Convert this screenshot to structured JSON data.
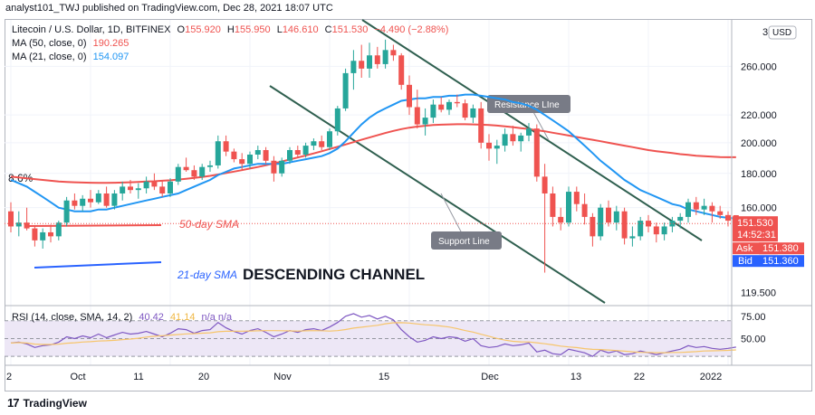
{
  "header": {
    "publish_line": "analyst101_TWJ published on TradingView.com, Dec 28, 2021 18:07 UTC"
  },
  "legend": {
    "symbol": "Litecoin / U.S. Dollar, 1D, BITFINEX",
    "o_label": "O",
    "o": "155.920",
    "h_label": "H",
    "h": "155.950",
    "l_label": "L",
    "l": "146.610",
    "c_label": "C",
    "c": "151.530",
    "change": "−4.490 (−2.88%)",
    "ma50": "MA (50, close, 0)",
    "ma50_val": "190.265",
    "ma21": "MA (21, close, 0)",
    "ma21_val": "154.097",
    "rsi": "RSI (14, close, SMA, 14, 2)",
    "rsi_val1": "40.42",
    "rsi_val2": "41.14",
    "rsi_na": "n/a  n/a"
  },
  "annotations": {
    "pct_label": "8.6%",
    "sma50": "50-day SMA",
    "sma21": "21-day SMA",
    "channel": "DESCENDING CHANNEL",
    "resistance": "Resistance LIne",
    "support": "Support Line"
  },
  "price_axis": {
    "currency": "USD",
    "currency_prefix": "3",
    "ticks": [
      "260.000",
      "220.000",
      "200.000",
      "180.000",
      "160.000",
      "119.500"
    ],
    "last_price": "151.530",
    "countdown": "14:52:31",
    "ask_label": "Ask",
    "ask": "151.380",
    "bid_label": "Bid",
    "bid": "151.360"
  },
  "rsi_axis": {
    "ticks": [
      "75.00",
      "50.00"
    ]
  },
  "time_axis": {
    "ticks": [
      "2",
      "Oct",
      "11",
      "20",
      "Nov",
      "15",
      "Dec",
      "13",
      "22",
      "2022"
    ]
  },
  "footer": {
    "brand": "TradingView",
    "logo": "17"
  },
  "colors": {
    "up": "#26a69a",
    "down": "#ef5350",
    "ma50": "#ef5350",
    "ma21": "#2196f3",
    "channel_line": "#2f5f4f",
    "rsi": "#7e57c2",
    "rsi_sma": "#f7c56a",
    "rsi_band": "#ede7f6"
  },
  "chart_data": {
    "type": "candlestick",
    "symbol": "LTCUSD",
    "timeframe": "1D",
    "scale": "log",
    "ylim": [
      115,
      305
    ],
    "dates": [
      "Sep 28",
      "Sep 29",
      "Sep 30",
      "Oct 1",
      "Oct 2",
      "Oct 3",
      "Oct 4",
      "Oct 5",
      "Oct 6",
      "Oct 7",
      "Oct 8",
      "Oct 9",
      "Oct 10",
      "Oct 11",
      "Oct 12",
      "Oct 13",
      "Oct 14",
      "Oct 15",
      "Oct 16",
      "Oct 17",
      "Oct 18",
      "Oct 19",
      "Oct 20",
      "Oct 21",
      "Oct 22",
      "Oct 23",
      "Oct 24",
      "Oct 25",
      "Oct 26",
      "Oct 27",
      "Oct 28",
      "Oct 29",
      "Oct 30",
      "Oct 31",
      "Nov 1",
      "Nov 2",
      "Nov 3",
      "Nov 4",
      "Nov 5",
      "Nov 6",
      "Nov 7",
      "Nov 8",
      "Nov 9",
      "Nov 10",
      "Nov 11",
      "Nov 12",
      "Nov 13",
      "Nov 14",
      "Nov 15",
      "Nov 16",
      "Nov 17",
      "Nov 18",
      "Nov 19",
      "Nov 20",
      "Nov 21",
      "Nov 22",
      "Nov 23",
      "Nov 24",
      "Nov 25",
      "Nov 26",
      "Nov 27",
      "Nov 28",
      "Nov 29",
      "Nov 30",
      "Dec 1",
      "Dec 2",
      "Dec 3",
      "Dec 4",
      "Dec 5",
      "Dec 6",
      "Dec 7",
      "Dec 8",
      "Dec 9",
      "Dec 10",
      "Dec 11",
      "Dec 12",
      "Dec 13",
      "Dec 14",
      "Dec 15",
      "Dec 16",
      "Dec 17",
      "Dec 18",
      "Dec 19",
      "Dec 20",
      "Dec 21",
      "Dec 22",
      "Dec 23",
      "Dec 24",
      "Dec 25",
      "Dec 26",
      "Dec 27",
      "Dec 28"
    ],
    "ohlc": [
      [
        158,
        163,
        147,
        150
      ],
      [
        150,
        158,
        145,
        152
      ],
      [
        152,
        160,
        148,
        149
      ],
      [
        149,
        150,
        140,
        143
      ],
      [
        143,
        149,
        139,
        147
      ],
      [
        147,
        151,
        142,
        145
      ],
      [
        145,
        153,
        143,
        152
      ],
      [
        152,
        166,
        150,
        164
      ],
      [
        164,
        168,
        159,
        161
      ],
      [
        161,
        167,
        158,
        165
      ],
      [
        165,
        170,
        160,
        163
      ],
      [
        163,
        170,
        162,
        168
      ],
      [
        168,
        172,
        160,
        161
      ],
      [
        161,
        170,
        159,
        168
      ],
      [
        168,
        175,
        164,
        172
      ],
      [
        172,
        176,
        168,
        170
      ],
      [
        170,
        174,
        165,
        171
      ],
      [
        171,
        178,
        168,
        175
      ],
      [
        175,
        180,
        170,
        172
      ],
      [
        172,
        176,
        166,
        168
      ],
      [
        168,
        177,
        166,
        175
      ],
      [
        175,
        186,
        173,
        184
      ],
      [
        184,
        190,
        181,
        182
      ],
      [
        182,
        185,
        176,
        178
      ],
      [
        178,
        186,
        176,
        184
      ],
      [
        184,
        188,
        181,
        185
      ],
      [
        185,
        205,
        183,
        201
      ],
      [
        201,
        205,
        191,
        194
      ],
      [
        194,
        196,
        187,
        189
      ],
      [
        189,
        193,
        182,
        186
      ],
      [
        186,
        194,
        183,
        192
      ],
      [
        192,
        198,
        189,
        195
      ],
      [
        195,
        197,
        186,
        188
      ],
      [
        188,
        191,
        175,
        180
      ],
      [
        180,
        190,
        178,
        188
      ],
      [
        188,
        197,
        186,
        195
      ],
      [
        195,
        198,
        190,
        192
      ],
      [
        192,
        200,
        190,
        198
      ],
      [
        198,
        203,
        195,
        201
      ],
      [
        201,
        205,
        195,
        197
      ],
      [
        197,
        210,
        195,
        208
      ],
      [
        208,
        227,
        205,
        225
      ],
      [
        225,
        258,
        223,
        254
      ],
      [
        254,
        275,
        240,
        265
      ],
      [
        265,
        280,
        250,
        258
      ],
      [
        258,
        282,
        250,
        270
      ],
      [
        270,
        278,
        258,
        262
      ],
      [
        262,
        285,
        258,
        275
      ],
      [
        275,
        280,
        265,
        270
      ],
      [
        270,
        272,
        240,
        244
      ],
      [
        244,
        252,
        220,
        226
      ],
      [
        226,
        240,
        210,
        213
      ],
      [
        213,
        225,
        205,
        218
      ],
      [
        218,
        232,
        214,
        228
      ],
      [
        228,
        234,
        222,
        224
      ],
      [
        224,
        232,
        220,
        230
      ],
      [
        230,
        236,
        226,
        229
      ],
      [
        229,
        232,
        216,
        218
      ],
      [
        218,
        228,
        214,
        225
      ],
      [
        225,
        230,
        196,
        200
      ],
      [
        200,
        206,
        188,
        196
      ],
      [
        196,
        202,
        186,
        198
      ],
      [
        198,
        210,
        194,
        206
      ],
      [
        206,
        212,
        198,
        201
      ],
      [
        201,
        207,
        194,
        205
      ],
      [
        205,
        214,
        201,
        210
      ],
      [
        210,
        213,
        175,
        178
      ],
      [
        178,
        186,
        128,
        168
      ],
      [
        168,
        172,
        150,
        155
      ],
      [
        155,
        160,
        148,
        152
      ],
      [
        152,
        172,
        150,
        169
      ],
      [
        169,
        172,
        158,
        162
      ],
      [
        162,
        168,
        151,
        155
      ],
      [
        155,
        157,
        140,
        145
      ],
      [
        145,
        162,
        143,
        160
      ],
      [
        160,
        164,
        150,
        152
      ],
      [
        152,
        161,
        148,
        158
      ],
      [
        158,
        160,
        141,
        144
      ],
      [
        144,
        150,
        140,
        145
      ],
      [
        145,
        155,
        143,
        153
      ],
      [
        153,
        156,
        147,
        150
      ],
      [
        150,
        152,
        142,
        146
      ],
      [
        146,
        152,
        143,
        150
      ],
      [
        150,
        155,
        147,
        153
      ],
      [
        153,
        157,
        149,
        155
      ],
      [
        155,
        165,
        152,
        163
      ],
      [
        163,
        166,
        156,
        159
      ],
      [
        159,
        165,
        156,
        161
      ],
      [
        161,
        163,
        152,
        158
      ],
      [
        158,
        161,
        154,
        156
      ],
      [
        156,
        158,
        150,
        153
      ],
      [
        155.92,
        155.95,
        146.61,
        151.53
      ]
    ],
    "series": [
      {
        "name": "MA (50, close, 0)",
        "values": [
          178,
          177.5,
          177,
          176.5,
          176,
          175.5,
          175,
          174.8,
          174.6,
          174.4,
          174.3,
          174.2,
          174.2,
          174.3,
          174.4,
          174.6,
          174.8,
          175.0,
          175.2,
          175.5,
          175.8,
          176.2,
          176.7,
          177.2,
          177.8,
          178.5,
          179.3,
          180.2,
          181.1,
          182.0,
          183.0,
          184.0,
          185.1,
          186.3,
          187.5,
          188.8,
          190.1,
          191.4,
          192.8,
          194.2,
          195.7,
          197.2,
          198.8,
          200.4,
          202.0,
          203.6,
          205.2,
          206.8,
          208.3,
          209.6,
          210.6,
          211.4,
          212.0,
          212.5,
          212.8,
          213.0,
          213.1,
          213.1,
          213.0,
          212.8,
          212.5,
          212.1,
          211.6,
          211.0,
          210.3,
          209.6,
          208.8,
          208.0,
          207.0,
          206.0,
          205.0,
          204.0,
          203.0,
          202.0,
          201.0,
          200.0,
          199.0,
          198.0,
          197.0,
          196.0,
          195.0,
          194.3,
          193.6,
          193.0,
          192.3,
          191.8,
          191.3,
          190.9,
          190.6,
          190.4,
          190.3,
          190.265
        ]
      },
      {
        "name": "MA (21, close, 0)",
        "values": [
          176,
          174,
          172,
          169,
          166,
          163,
          160,
          159,
          158,
          158,
          158,
          159,
          159,
          160,
          161,
          162,
          163,
          164,
          165,
          166,
          167,
          168,
          170,
          172,
          174,
          176,
          179,
          181,
          183,
          184,
          185,
          186,
          186,
          186,
          186,
          187,
          188,
          189,
          190,
          191,
          193,
          196,
          201,
          207,
          213,
          218,
          222,
          225,
          228,
          231,
          232,
          233,
          233,
          234,
          234,
          235,
          235,
          236,
          236,
          235,
          234,
          233,
          232,
          230,
          229,
          227,
          224,
          220,
          216,
          212,
          208,
          203,
          198,
          193,
          188,
          184,
          180,
          176,
          173,
          170,
          168,
          166,
          164,
          162,
          161,
          159,
          158,
          157,
          156,
          155,
          154.5,
          154.097
        ]
      },
      {
        "name": "RSI (14, close, SMA, 14, 2)",
        "values": [
          45,
          46,
          44,
          40,
          42,
          43,
          46,
          52,
          50,
          53,
          51,
          55,
          51,
          54,
          57,
          55,
          56,
          58,
          55,
          52,
          56,
          61,
          60,
          56,
          59,
          60,
          68,
          62,
          58,
          55,
          59,
          61,
          57,
          52,
          55,
          59,
          57,
          60,
          61,
          59,
          63,
          68,
          75,
          78,
          74,
          76,
          72,
          75,
          71,
          60,
          52,
          46,
          48,
          52,
          50,
          52,
          51,
          47,
          50,
          42,
          40,
          41,
          44,
          42,
          43,
          45,
          35,
          37,
          33,
          32,
          38,
          36,
          34,
          30,
          37,
          34,
          36,
          32,
          33,
          36,
          34,
          32,
          34,
          36,
          38,
          42,
          40,
          41,
          39,
          38,
          39,
          40.42
        ]
      }
    ],
    "annotations_lines": [
      "Resistance Line",
      "Support Line",
      "50-day SMA",
      "21-day SMA"
    ],
    "grid": true,
    "legend_position": "top-left"
  }
}
